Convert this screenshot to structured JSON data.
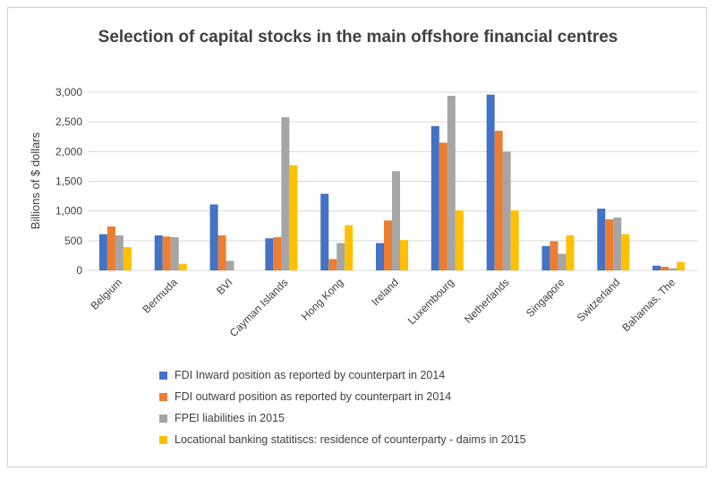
{
  "chart_data": {
    "type": "bar",
    "title": "Selection of capital stocks in the main offshore financial centres",
    "ylabel": "Billions of $ dollars",
    "xlabel": "",
    "ylim": [
      0,
      3000
    ],
    "yticks": [
      0,
      500,
      1000,
      1500,
      2000,
      2500,
      3000
    ],
    "ytick_labels": [
      "0",
      "500",
      "1,000",
      "1,500",
      "2,000",
      "2,500",
      "3,000"
    ],
    "grid": true,
    "legend_position": "bottom",
    "categories": [
      "Belgium",
      "Bermuda",
      "BVI",
      "Cayman Islands",
      "Hong Kong",
      "Ireland",
      "Luxembourg",
      "Netherlands",
      "Singapore",
      "Switzerland",
      "Bahamas, The"
    ],
    "series": [
      {
        "name": "FDI Inward position as reported by counterpart in 2014",
        "color": "#4472c4",
        "values": [
          610,
          590,
          1110,
          540,
          1290,
          460,
          2430,
          2960,
          410,
          1040,
          80
        ]
      },
      {
        "name": "FDI outward position as reported by counterpart in 2014",
        "color": "#ed7d31",
        "values": [
          740,
          570,
          590,
          560,
          190,
          840,
          2150,
          2350,
          490,
          860,
          60
        ]
      },
      {
        "name": "FPEI liabilities in  2015",
        "color": "#a5a5a5",
        "values": [
          590,
          560,
          160,
          2580,
          460,
          1670,
          2940,
          2000,
          280,
          890,
          35
        ]
      },
      {
        "name": "Locational banking statitiscs: residence of counterparty - daims in 2015",
        "color": "#ffc000",
        "values": [
          390,
          110,
          0,
          1770,
          760,
          510,
          1010,
          1010,
          590,
          610,
          140
        ]
      }
    ]
  }
}
